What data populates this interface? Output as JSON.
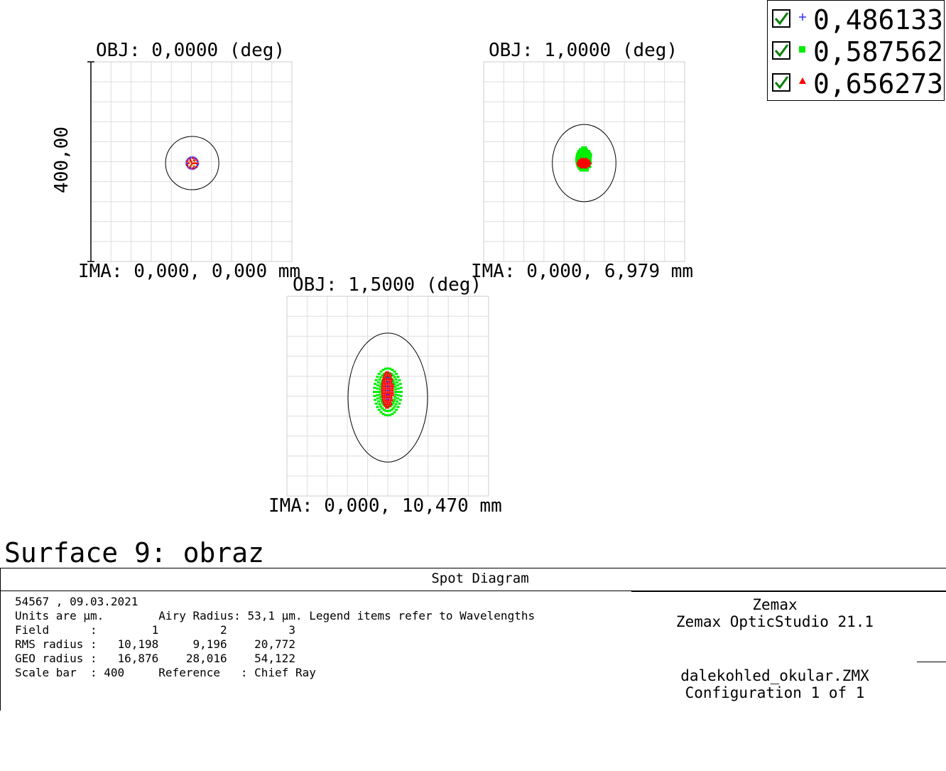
{
  "chart_data": [
    {
      "type": "scatter",
      "title": "OBJ: 0,0000 (deg)",
      "xlabel": "IMA: 0,000, 0,000 mm",
      "ylabel": "400,00",
      "airy_radius_um": 53.1,
      "rms_radius_um": 10.198,
      "geo_radius_um": 16.876,
      "grid": true
    },
    {
      "type": "scatter",
      "title": "OBJ: 1,0000 (deg)",
      "xlabel": "IMA: 0,000, 6,979 mm",
      "airy_radius_um": 53.1,
      "rms_radius_um": 9.196,
      "geo_radius_um": 28.016,
      "grid": true
    },
    {
      "type": "scatter",
      "title": "OBJ: 1,5000 (deg)",
      "xlabel": "IMA: 0,000, 10,470 mm",
      "airy_radius_um": 53.1,
      "rms_radius_um": 20.772,
      "geo_radius_um": 54.122,
      "grid": true
    }
  ],
  "legend": {
    "placement": "top-right",
    "items": [
      {
        "label": "0,486133",
        "marker": "plus",
        "color": "#3333ff"
      },
      {
        "label": "0,587562",
        "marker": "square",
        "color": "#00ee00"
      },
      {
        "label": "0,656273",
        "marker": "triangle",
        "color": "#ff0000"
      }
    ]
  },
  "surface_title": "Surface 9: obraz",
  "info": {
    "header": "Spot Diagram",
    "lines": [
      "54567 , 09.03.2021",
      "Units are µm.        Airy Radius: 53,1 µm. Legend items refer to Wavelengths",
      "Field      :        1         2         3",
      "RMS radius :   10,198     9,196    20,772",
      "GEO radius :   16,876    28,016    54,122",
      "Scale bar  : 400     Reference   : Chief Ray"
    ],
    "right_top": [
      "Zemax",
      "Zemax OpticStudio 21.1"
    ],
    "right_bottom": [
      "dalekohled_okular.ZMX",
      "Configuration 1 of 1"
    ]
  },
  "colors": {
    "grid": "#dddddd",
    "frame": "#cccccc",
    "airy": "#000000",
    "wl1": "#3333ff",
    "wl2": "#00ee00",
    "wl3": "#ff0000"
  }
}
